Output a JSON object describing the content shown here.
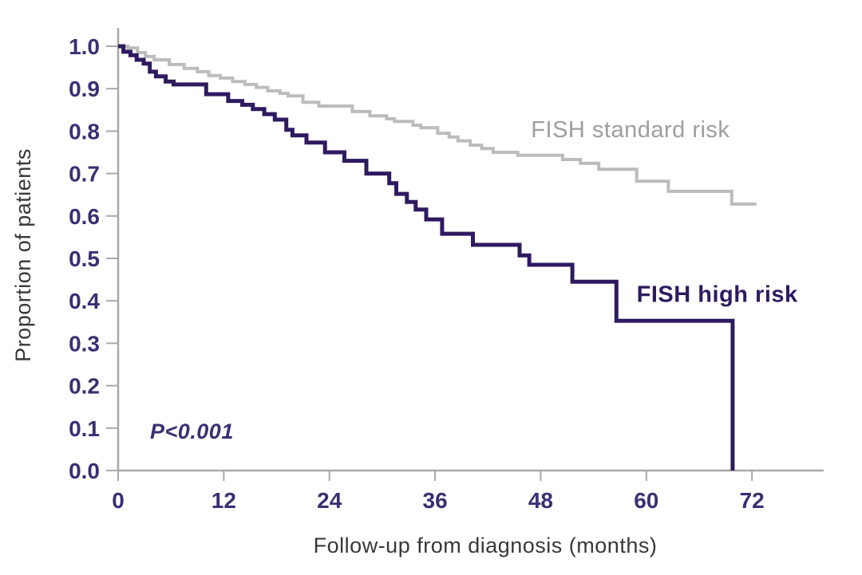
{
  "chart_data": {
    "type": "line",
    "subtype": "kaplan-meier-step",
    "title": "",
    "xlabel": "Follow-up from diagnosis (months)",
    "ylabel": "Proportion of patients",
    "xlim": [
      0,
      80
    ],
    "ylim": [
      0.0,
      1.0
    ],
    "x_ticks": [
      0,
      12,
      24,
      36,
      48,
      60,
      72
    ],
    "y_ticks": [
      "0.0",
      "0.1",
      "0.2",
      "0.3",
      "0.4",
      "0.5",
      "0.6",
      "0.7",
      "0.8",
      "0.9",
      "1.0"
    ],
    "grid": false,
    "legend_position": "inline-labels",
    "annotations": [
      {
        "text": "P<0.001",
        "x": 3.6,
        "y": 0.09
      }
    ],
    "series": [
      {
        "name": "FISH standard risk",
        "color": "#bcbcbc",
        "label_color": "#9e9e9e",
        "label_x": 46.9,
        "label_y": 0.786,
        "label_bold": false,
        "stroke_width": 4,
        "points": [
          [
            0,
            1.0
          ],
          [
            1.1,
            0.996
          ],
          [
            2.2,
            0.985
          ],
          [
            3.1,
            0.976
          ],
          [
            4.1,
            0.968
          ],
          [
            5.8,
            0.957
          ],
          [
            7.5,
            0.948
          ],
          [
            9.0,
            0.94
          ],
          [
            10.3,
            0.931
          ],
          [
            11.6,
            0.925
          ],
          [
            13.0,
            0.917
          ],
          [
            14.4,
            0.91
          ],
          [
            15.7,
            0.903
          ],
          [
            17.0,
            0.895
          ],
          [
            18.4,
            0.889
          ],
          [
            19.3,
            0.883
          ],
          [
            21.0,
            0.868
          ],
          [
            22.8,
            0.859
          ],
          [
            26.6,
            0.846
          ],
          [
            28.6,
            0.836
          ],
          [
            30.5,
            0.829
          ],
          [
            31.4,
            0.823
          ],
          [
            33.5,
            0.814
          ],
          [
            34.4,
            0.808
          ],
          [
            36.3,
            0.795
          ],
          [
            37.6,
            0.786
          ],
          [
            38.6,
            0.777
          ],
          [
            40.0,
            0.767
          ],
          [
            41.3,
            0.759
          ],
          [
            42.6,
            0.75
          ],
          [
            45.4,
            0.743
          ],
          [
            50.5,
            0.733
          ],
          [
            52.5,
            0.724
          ],
          [
            54.6,
            0.71
          ],
          [
            58.9,
            0.682
          ],
          [
            62.5,
            0.658
          ],
          [
            69.7,
            0.628
          ],
          [
            72.5,
            0.628
          ]
        ]
      },
      {
        "name": "FISH high risk",
        "color": "#2f1a60",
        "label_color": "#2f1a60",
        "label_x": 58.9,
        "label_y": 0.398,
        "label_bold": true,
        "stroke_width": 5,
        "points": [
          [
            0,
            1.0
          ],
          [
            0.6,
            0.987
          ],
          [
            1.4,
            0.979
          ],
          [
            2.1,
            0.968
          ],
          [
            2.9,
            0.959
          ],
          [
            3.6,
            0.94
          ],
          [
            4.3,
            0.929
          ],
          [
            5.4,
            0.917
          ],
          [
            6.3,
            0.91
          ],
          [
            10.0,
            0.887
          ],
          [
            12.5,
            0.871
          ],
          [
            14.1,
            0.862
          ],
          [
            15.3,
            0.852
          ],
          [
            16.6,
            0.84
          ],
          [
            17.8,
            0.827
          ],
          [
            19.1,
            0.803
          ],
          [
            19.8,
            0.79
          ],
          [
            21.4,
            0.773
          ],
          [
            23.5,
            0.75
          ],
          [
            25.7,
            0.73
          ],
          [
            28.2,
            0.7
          ],
          [
            30.8,
            0.677
          ],
          [
            31.6,
            0.652
          ],
          [
            32.8,
            0.633
          ],
          [
            33.8,
            0.615
          ],
          [
            35.0,
            0.592
          ],
          [
            36.8,
            0.558
          ],
          [
            40.3,
            0.532
          ],
          [
            45.6,
            0.507
          ],
          [
            46.7,
            0.485
          ],
          [
            51.6,
            0.445
          ],
          [
            56.6,
            0.353
          ],
          [
            69.8,
            0.0
          ]
        ]
      }
    ],
    "axis_color": "#a8a8a8",
    "tick_text_color": "#3b2f72",
    "axis_title_color": "#383838"
  }
}
